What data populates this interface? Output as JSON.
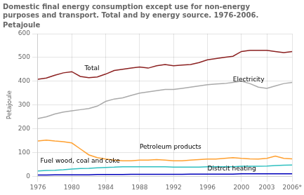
{
  "chart_data": {
    "type": "line",
    "title": [
      "Domestic final energy consumption except use for non-energy",
      "purposes and transport. Total and by energy source. 1976-2006."
    ],
    "subtitle": "Petajoule",
    "ylabel": "Petajoule",
    "x": [
      1976,
      1977,
      1978,
      1979,
      1980,
      1981,
      1982,
      1983,
      1984,
      1985,
      1986,
      1987,
      1988,
      1989,
      1990,
      1991,
      1992,
      1993,
      1994,
      1995,
      1996,
      1997,
      1998,
      1999,
      2000,
      2001,
      2002,
      2003,
      2004,
      2005,
      2006
    ],
    "series": [
      {
        "color": "#8B2020",
        "values": [
          408,
          413,
          425,
          435,
          440,
          420,
          415,
          418,
          430,
          445,
          450,
          455,
          460,
          455,
          465,
          470,
          465,
          468,
          470,
          478,
          490,
          495,
          500,
          505,
          525,
          530,
          530,
          530,
          525,
          520,
          525
        ]
      },
      {
        "color": "#AAAAAA",
        "values": [
          243,
          250,
          262,
          270,
          275,
          280,
          285,
          295,
          315,
          325,
          330,
          340,
          350,
          355,
          360,
          365,
          365,
          370,
          375,
          380,
          385,
          388,
          390,
          395,
          400,
          390,
          375,
          370,
          380,
          390,
          395
        ]
      },
      {
        "color": "#FFA030",
        "values": [
          148,
          152,
          148,
          145,
          140,
          115,
          90,
          78,
          72,
          68,
          65,
          65,
          68,
          68,
          70,
          68,
          65,
          65,
          68,
          70,
          72,
          72,
          75,
          78,
          75,
          73,
          72,
          75,
          85,
          75,
          73
        ]
      },
      {
        "color": "#30C0C0",
        "values": [
          22,
          24,
          25,
          27,
          30,
          32,
          33,
          35,
          37,
          38,
          40,
          40,
          40,
          40,
          40,
          40,
          38,
          38,
          38,
          38,
          40,
          40,
          40,
          40,
          42,
          42,
          42,
          43,
          45,
          46,
          47
        ]
      },
      {
        "color": "#0000BB",
        "values": [
          5,
          5,
          6,
          6,
          6,
          6,
          6,
          7,
          7,
          7,
          7,
          8,
          8,
          8,
          8,
          8,
          8,
          8,
          9,
          9,
          9,
          9,
          9,
          9,
          10,
          10,
          10,
          10,
          10,
          10,
          10
        ]
      }
    ],
    "annotations": [
      {
        "text": "Total",
        "x": 1981.5,
        "y": 440
      },
      {
        "text": "Electricity",
        "x": 1999,
        "y": 393
      },
      {
        "text": "Petroleum products",
        "x": 1988,
        "y": 108
      },
      {
        "text": "Fuel wood, coal and coke",
        "x": 1976.3,
        "y": 50
      },
      {
        "text": "Distrcit heating",
        "x": 1996,
        "y": 17
      }
    ],
    "xlim": [
      1976,
      2006
    ],
    "xticks": [
      1976,
      1980,
      1984,
      1988,
      1992,
      1996,
      2000,
      2003,
      {
        "value": 2006,
        "label": "2006*"
      }
    ],
    "ylim": [
      0,
      600
    ],
    "yticks": [
      0,
      100,
      200,
      300,
      400,
      500,
      600
    ],
    "grid": true
  }
}
